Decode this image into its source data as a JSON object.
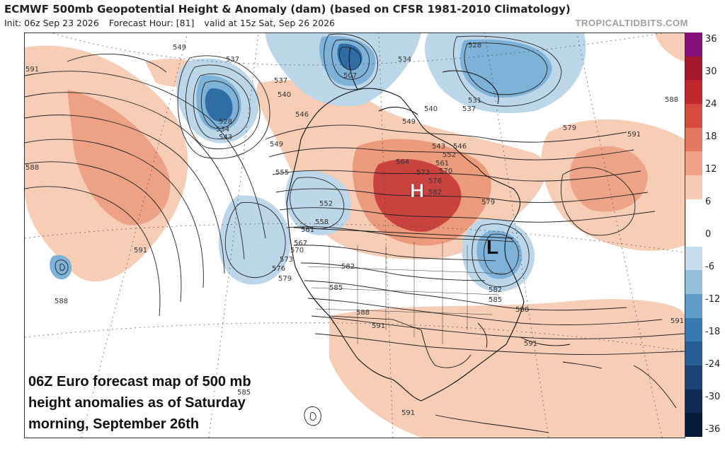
{
  "header": {
    "title": "ECMWF 500mb Geopotential Height & Anomaly (dam) (based on CFSR 1981-2010 Climatology)",
    "init": "Init: 06z Sep 23 2026",
    "forecast_hour": "Forecast Hour: [81]",
    "valid": "valid at 15z Sat, Sep 26 2026",
    "brand": "TROPICALTIDBITS.COM"
  },
  "map": {
    "high_symbol": "H",
    "low_symbol": "L",
    "contour_labels": {
      "l549a": "549",
      "l537a": "537",
      "l537b": "537",
      "l540a": "540",
      "l546a": "546",
      "l549b": "549",
      "l555": "555",
      "l528a": "528",
      "l534a": "534",
      "l543a": "543",
      "l507": "507",
      "l534b": "534",
      "l528b": "528",
      "l531": "531",
      "l537c": "537",
      "l540b": "540",
      "l549c": "549",
      "l546b": "546",
      "l552a": "552",
      "l543b": "543",
      "l564": "564",
      "l561": "561",
      "l570": "570",
      "l573": "573",
      "l576": "576",
      "l582a": "582",
      "l579a": "579",
      "l579b": "579",
      "l591a": "591",
      "l591b": "591",
      "l588a": "588",
      "l588b": "588",
      "l591c": "591",
      "l552b": "552",
      "l558": "558",
      "l561b": "561",
      "l567": "567",
      "l570b": "570",
      "l573b": "573",
      "l576b": "576",
      "l579c": "579",
      "l582b": "582",
      "l585a": "585",
      "l588c": "588",
      "l591d": "591",
      "l582c": "582",
      "l585b": "585",
      "l588d": "588",
      "l591e": "591",
      "l591f": "591",
      "l585c": "585",
      "l591g": "591"
    },
    "anomaly_colors": {
      "warm_light": "#f7cdb6",
      "warm_mid": "#eb9a7c",
      "warm_strong": "#c9423d",
      "cool_light": "#bcd7ea",
      "cool_mid": "#7fb2d8",
      "cool_strong": "#2f6ea5"
    }
  },
  "colorbar": {
    "labels": [
      "36",
      "30",
      "24",
      "18",
      "12",
      "6",
      "0",
      "-6",
      "-12",
      "-18",
      "-24",
      "-30",
      "-36"
    ],
    "colors": [
      "#86117a",
      "#a3172a",
      "#c0282e",
      "#d54b3f",
      "#e2785f",
      "#ee9f84",
      "#f8cbb4",
      "#ffffff",
      "#ffffff",
      "#c7dcec",
      "#93bfdd",
      "#5f9cc8",
      "#3a7ab2",
      "#285d94",
      "#1a4275",
      "#0f2a55",
      "#061838"
    ]
  },
  "caption": {
    "text": "06Z Euro forecast map of 500 mb height anomalies as of Saturday morning, September 26th"
  }
}
